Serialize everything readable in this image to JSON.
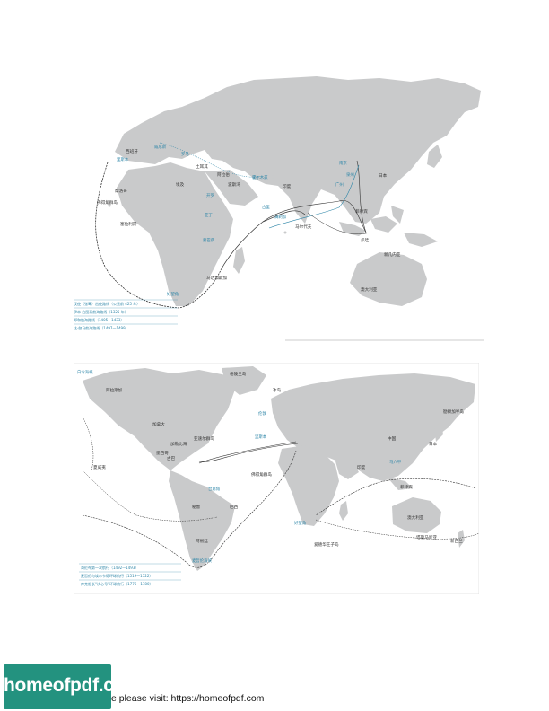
{
  "map1": {
    "labels_black": [
      {
        "id": "xibanya",
        "t": "西班牙"
      },
      {
        "id": "tuerqi",
        "t": "土耳其"
      },
      {
        "id": "bosiwan",
        "t": "波斯湾"
      },
      {
        "id": "alabo",
        "t": "阿拉伯"
      },
      {
        "id": "feizhou",
        "t": "埃及"
      },
      {
        "id": "yindu",
        "t": "印度"
      },
      {
        "id": "riben",
        "t": "日本"
      },
      {
        "id": "feilvbin",
        "t": "菲律宾"
      },
      {
        "id": "malifu",
        "t": "马尔代夫"
      },
      {
        "id": "madajiasijia",
        "t": "马达加斯加"
      },
      {
        "id": "aodaliya",
        "t": "澳大利亚"
      },
      {
        "id": "xinjineiya",
        "t": "新几内亚"
      },
      {
        "id": "yinni",
        "t": "爪哇"
      },
      {
        "id": "moluoge",
        "t": "摩洛哥"
      },
      {
        "id": "weidejiao",
        "t": "佛得角群岛"
      },
      {
        "id": "saiqiliya",
        "t": "塞拉利昂"
      }
    ],
    "labels_blue": [
      {
        "id": "weinisi",
        "t": "威尼斯"
      },
      {
        "id": "luoma",
        "t": "罗马"
      },
      {
        "id": "jiaxin",
        "t": "里斯本"
      },
      {
        "id": "kaluo",
        "t": "开罗"
      },
      {
        "id": "taozhi",
        "t": "霍尔木兹"
      },
      {
        "id": "gulifu",
        "t": "古里"
      },
      {
        "id": "guangzhou",
        "t": "广州"
      },
      {
        "id": "nanjing",
        "t": "南京"
      },
      {
        "id": "quanzhou",
        "t": "泉州"
      },
      {
        "id": "mangjiala",
        "t": "满剌加"
      },
      {
        "id": "mombasa",
        "t": "蒙巴萨"
      },
      {
        "id": "haowangjiao",
        "t": "好望角"
      },
      {
        "id": "aden",
        "t": "亚丁"
      }
    ],
    "legend": [
      "汉使（张骞）出使路线（公元前 425 年）",
      "伊本·白图泰航海路线（1325 年）",
      "郑和航海路线（1405—1433）",
      "达·伽马航海路线（1497—1499）"
    ]
  },
  "map2": {
    "labels_black": [
      {
        "id": "gelinglan",
        "t": "格陵兰岛"
      },
      {
        "id": "bingdao",
        "t": "冰岛"
      },
      {
        "id": "beimei",
        "t": "阿拉斯加"
      },
      {
        "id": "jianada",
        "t": "加拿大"
      },
      {
        "id": "zhongguo",
        "t": "中国"
      },
      {
        "id": "yindu2",
        "t": "印度"
      },
      {
        "id": "riben2",
        "t": "日本"
      },
      {
        "id": "xiaweiyi",
        "t": "夏威夷"
      },
      {
        "id": "bila",
        "t": "巴西"
      },
      {
        "id": "bilu",
        "t": "秘鲁"
      },
      {
        "id": "agenting",
        "t": "阿根廷"
      },
      {
        "id": "aodaliya2",
        "t": "澳大利亚"
      },
      {
        "id": "xinxilan",
        "t": "新西兰"
      },
      {
        "id": "jiabei",
        "t": "古巴"
      },
      {
        "id": "baxi",
        "t": "佛得角群岛"
      },
      {
        "id": "feilvbin2",
        "t": "菲律宾"
      },
      {
        "id": "xibanya2",
        "t": "亚速尔群岛"
      },
      {
        "id": "jialifuniya",
        "t": "墨西哥"
      },
      {
        "id": "jiamaijia",
        "t": "加勒比海"
      },
      {
        "id": "tahiti",
        "t": "塔斯马尼亚"
      },
      {
        "id": "wangzi",
        "t": "爱德华王子岛"
      },
      {
        "id": "jiacha",
        "t": "勘察加半岛"
      }
    ],
    "labels_blue": [
      {
        "id": "baiheng",
        "t": "白令海峡"
      },
      {
        "id": "lundun",
        "t": "伦敦"
      },
      {
        "id": "lisiben",
        "t": "里斯本"
      },
      {
        "id": "maijialun",
        "t": "麦哲伦海峡"
      },
      {
        "id": "haowangjiao2",
        "t": "好望角"
      },
      {
        "id": "maliuqi",
        "t": "马六甲"
      },
      {
        "id": "haixia",
        "t": "合恩角"
      }
    ],
    "legend": [
      "哥伦布第一次航行（1492—1493）",
      "麦哲伦与埃尔卡诺环球航行（1519—1522）",
      "库克船长“决心号”环球航行（1776—1780）"
    ]
  },
  "footer": {
    "brand": "homeofpdf.com",
    "text": "e please visit: https://homeofpdf.com"
  },
  "colors": {
    "land": "#c9cacb",
    "sea": "#ffffff",
    "route_blue": "#2e86a8",
    "route_black": "#333333",
    "brand_bg": "#23927f"
  }
}
